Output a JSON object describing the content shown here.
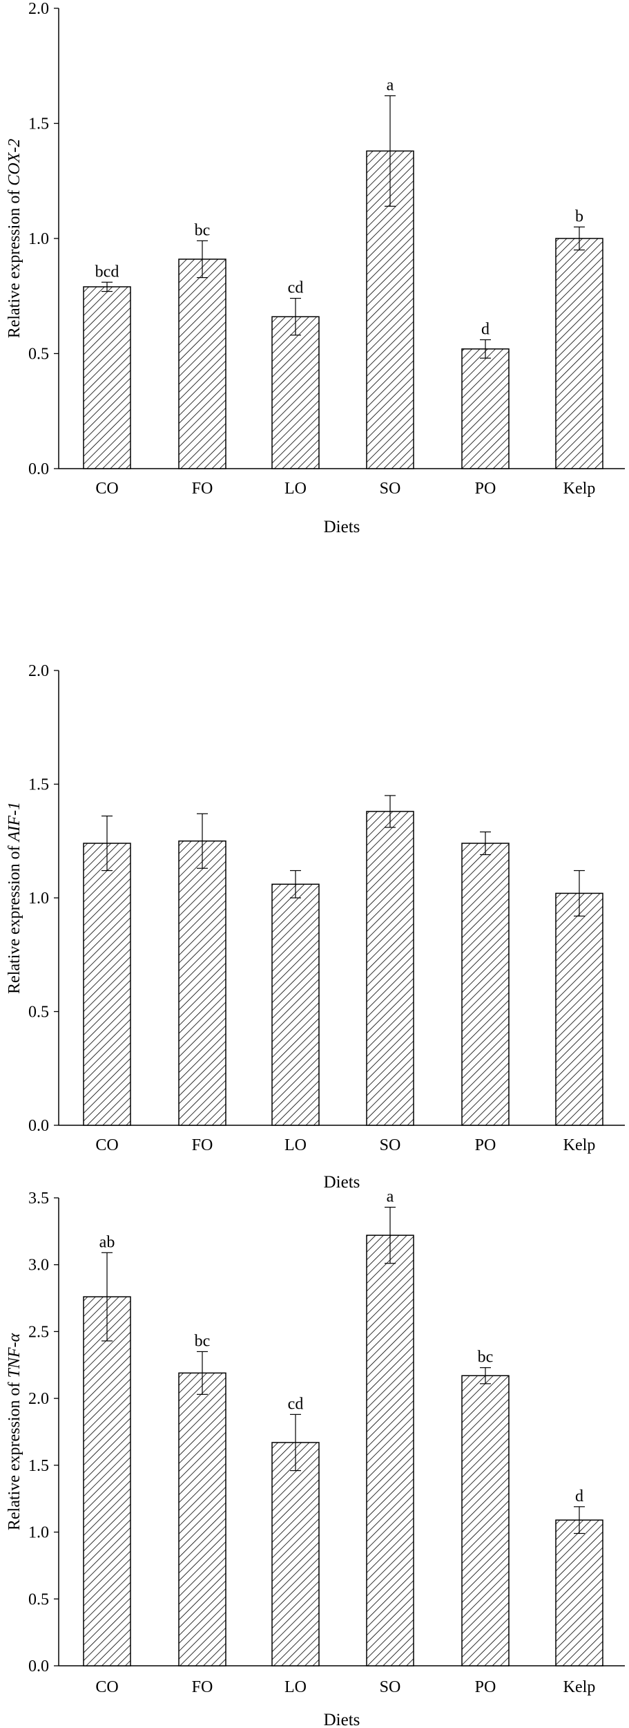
{
  "chart_data": [
    {
      "type": "bar",
      "categories": [
        "CO",
        "FO",
        "LO",
        "SO",
        "PO",
        "Kelp"
      ],
      "values": [
        0.79,
        0.91,
        0.66,
        1.38,
        0.52,
        1.0
      ],
      "errors": [
        0.02,
        0.08,
        0.08,
        0.24,
        0.04,
        0.05
      ],
      "labels": [
        "bcd",
        "bc",
        "cd",
        "a",
        "d",
        "b"
      ],
      "xlabel": "Diets",
      "ylabel_prefix": "Relative expression of ",
      "ylabel_gene": "COX-2",
      "ylim": [
        0,
        2.0
      ],
      "yticks": [
        0.0,
        0.5,
        1.0,
        1.5,
        2.0
      ],
      "ytick_labels": [
        "0.0",
        "0.5",
        "1.0",
        "1.5",
        "2.0"
      ],
      "grid": false,
      "bar_fill": "hatched"
    },
    {
      "type": "bar",
      "categories": [
        "CO",
        "FO",
        "LO",
        "SO",
        "PO",
        "Kelp"
      ],
      "values": [
        1.24,
        1.25,
        1.06,
        1.38,
        1.24,
        1.02
      ],
      "errors": [
        0.12,
        0.12,
        0.06,
        0.07,
        0.05,
        0.1
      ],
      "labels": [
        "",
        "",
        "",
        "",
        "",
        ""
      ],
      "xlabel": "Diets",
      "ylabel_prefix": "Relative expression of ",
      "ylabel_gene": "AIF-1",
      "ylim": [
        0,
        2.0
      ],
      "yticks": [
        0.0,
        0.5,
        1.0,
        1.5,
        2.0
      ],
      "ytick_labels": [
        "0.0",
        "0.5",
        "1.0",
        "1.5",
        "2.0"
      ],
      "grid": false,
      "bar_fill": "hatched"
    },
    {
      "type": "bar",
      "categories": [
        "CO",
        "FO",
        "LO",
        "SO",
        "PO",
        "Kelp"
      ],
      "values": [
        2.76,
        2.19,
        1.67,
        3.22,
        2.17,
        1.09
      ],
      "errors": [
        0.33,
        0.16,
        0.21,
        0.21,
        0.06,
        0.1
      ],
      "labels": [
        "ab",
        "bc",
        "cd",
        "a",
        "bc",
        "d"
      ],
      "xlabel": "Diets",
      "ylabel_prefix": "Relative expression of ",
      "ylabel_gene": "TNF-α",
      "ylim": [
        0,
        3.5
      ],
      "yticks": [
        0.0,
        0.5,
        1.0,
        1.5,
        2.0,
        2.5,
        3.0,
        3.5
      ],
      "ytick_labels": [
        "0.0",
        "0.5",
        "1.0",
        "1.5",
        "2.0",
        "2.5",
        "3.0",
        "3.5"
      ],
      "grid": false,
      "bar_fill": "hatched"
    }
  ],
  "colors": {
    "bar_stroke": "#000000",
    "hatch": "#000000",
    "background": "#ffffff"
  }
}
